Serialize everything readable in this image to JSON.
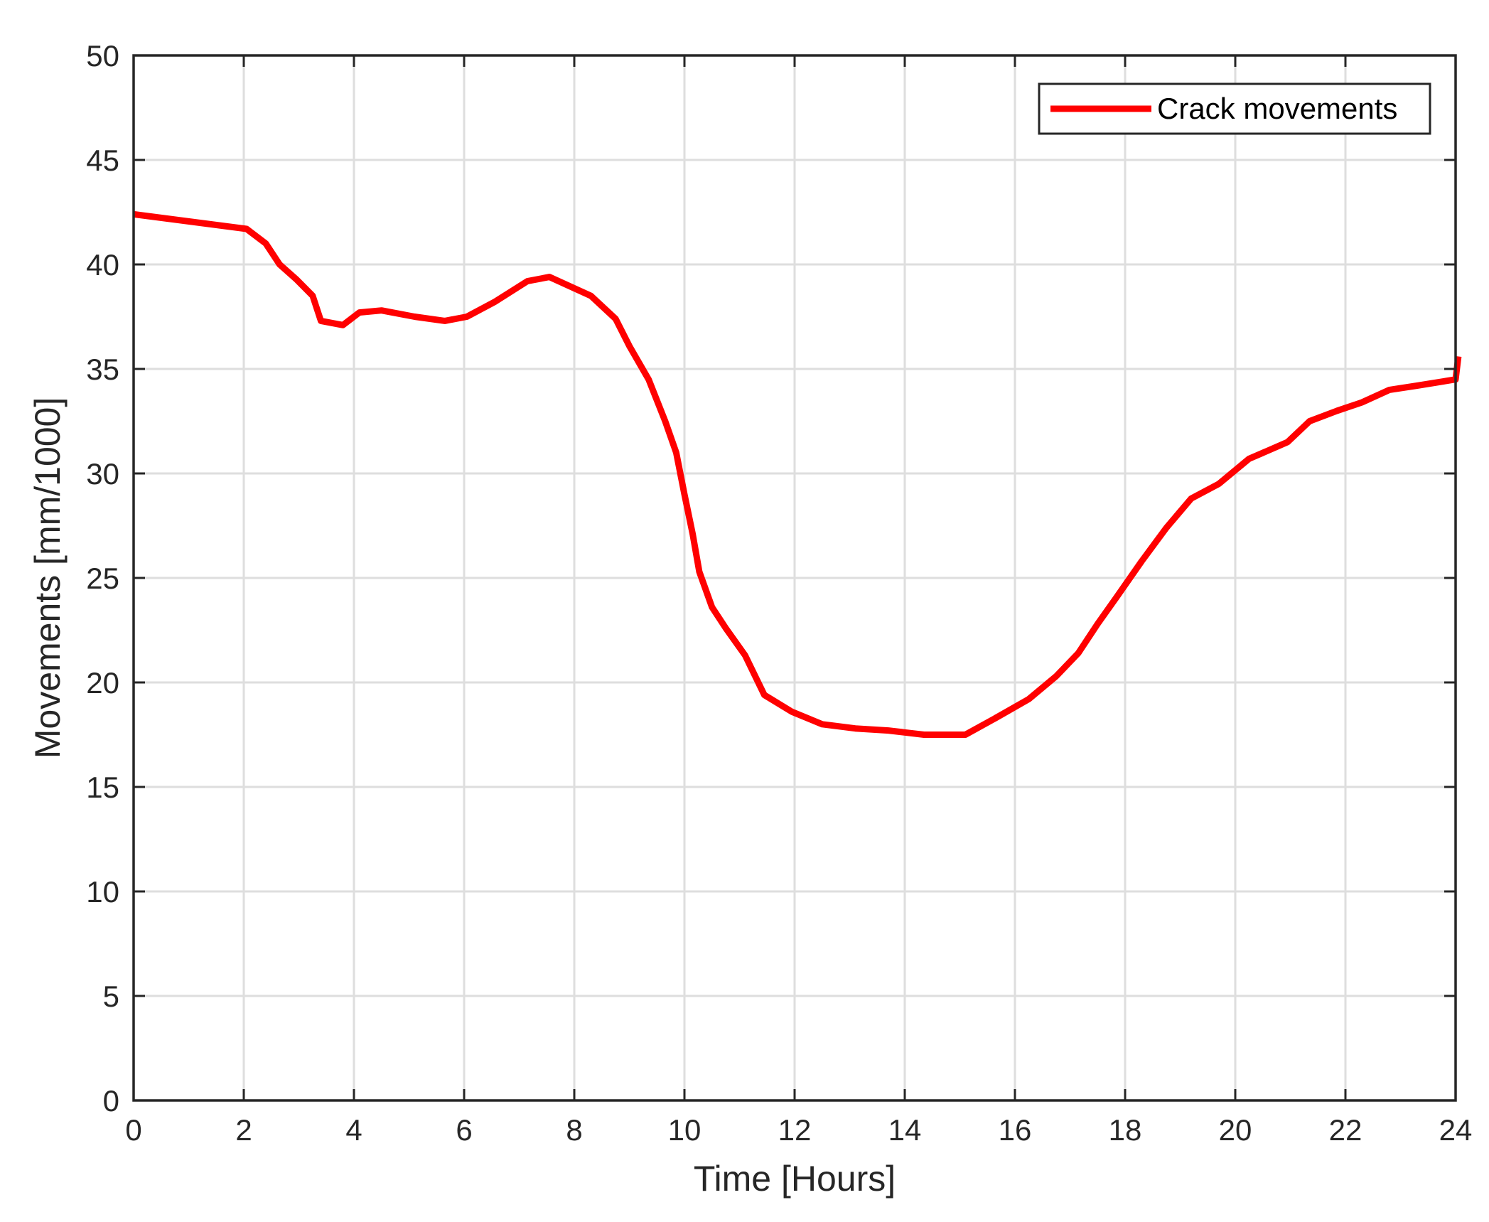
{
  "chart_data": {
    "type": "line",
    "xlabel": "Time [Hours]",
    "ylabel": "Movements [mm/1000]",
    "xlim": [
      0,
      24
    ],
    "ylim": [
      0,
      50
    ],
    "xticks": [
      0,
      2,
      4,
      6,
      8,
      10,
      12,
      14,
      16,
      18,
      20,
      22,
      24
    ],
    "yticks": [
      0,
      5,
      10,
      15,
      20,
      25,
      30,
      35,
      40,
      45,
      50
    ],
    "grid": true,
    "legend_position": "top-right",
    "series": [
      {
        "name": "Crack movements",
        "color": "#ff0000",
        "x": [
          0,
          2.05,
          2.4,
          2.65,
          2.95,
          3.25,
          3.4,
          3.8,
          4.1,
          4.5,
          5.1,
          5.65,
          6.05,
          6.55,
          7.15,
          7.55,
          8.3,
          8.75,
          9.0,
          9.35,
          9.65,
          9.85,
          10.0,
          10.15,
          10.27,
          10.5,
          10.75,
          11.1,
          11.45,
          11.95,
          12.5,
          13.1,
          13.7,
          14.35,
          15.1,
          15.65,
          16.25,
          16.75,
          17.15,
          17.5,
          17.85,
          18.3,
          18.75,
          19.2,
          19.7,
          20.25,
          20.95,
          21.35,
          21.85,
          22.3,
          22.8,
          23.3,
          24.0,
          24.05
        ],
        "y": [
          42.4,
          41.7,
          41.0,
          40.0,
          39.3,
          38.5,
          37.3,
          37.1,
          37.7,
          37.8,
          37.5,
          37.3,
          37.5,
          38.2,
          39.2,
          39.4,
          38.5,
          37.4,
          36.1,
          34.5,
          32.5,
          31.0,
          29.0,
          27.1,
          25.3,
          23.6,
          22.6,
          21.3,
          19.4,
          18.6,
          18.0,
          17.8,
          17.7,
          17.5,
          17.5,
          18.3,
          19.2,
          20.3,
          21.4,
          22.8,
          24.1,
          25.8,
          27.4,
          28.8,
          29.5,
          30.7,
          31.5,
          32.5,
          33.0,
          33.4,
          34.0,
          34.2,
          34.5,
          35.6
        ]
      }
    ]
  }
}
